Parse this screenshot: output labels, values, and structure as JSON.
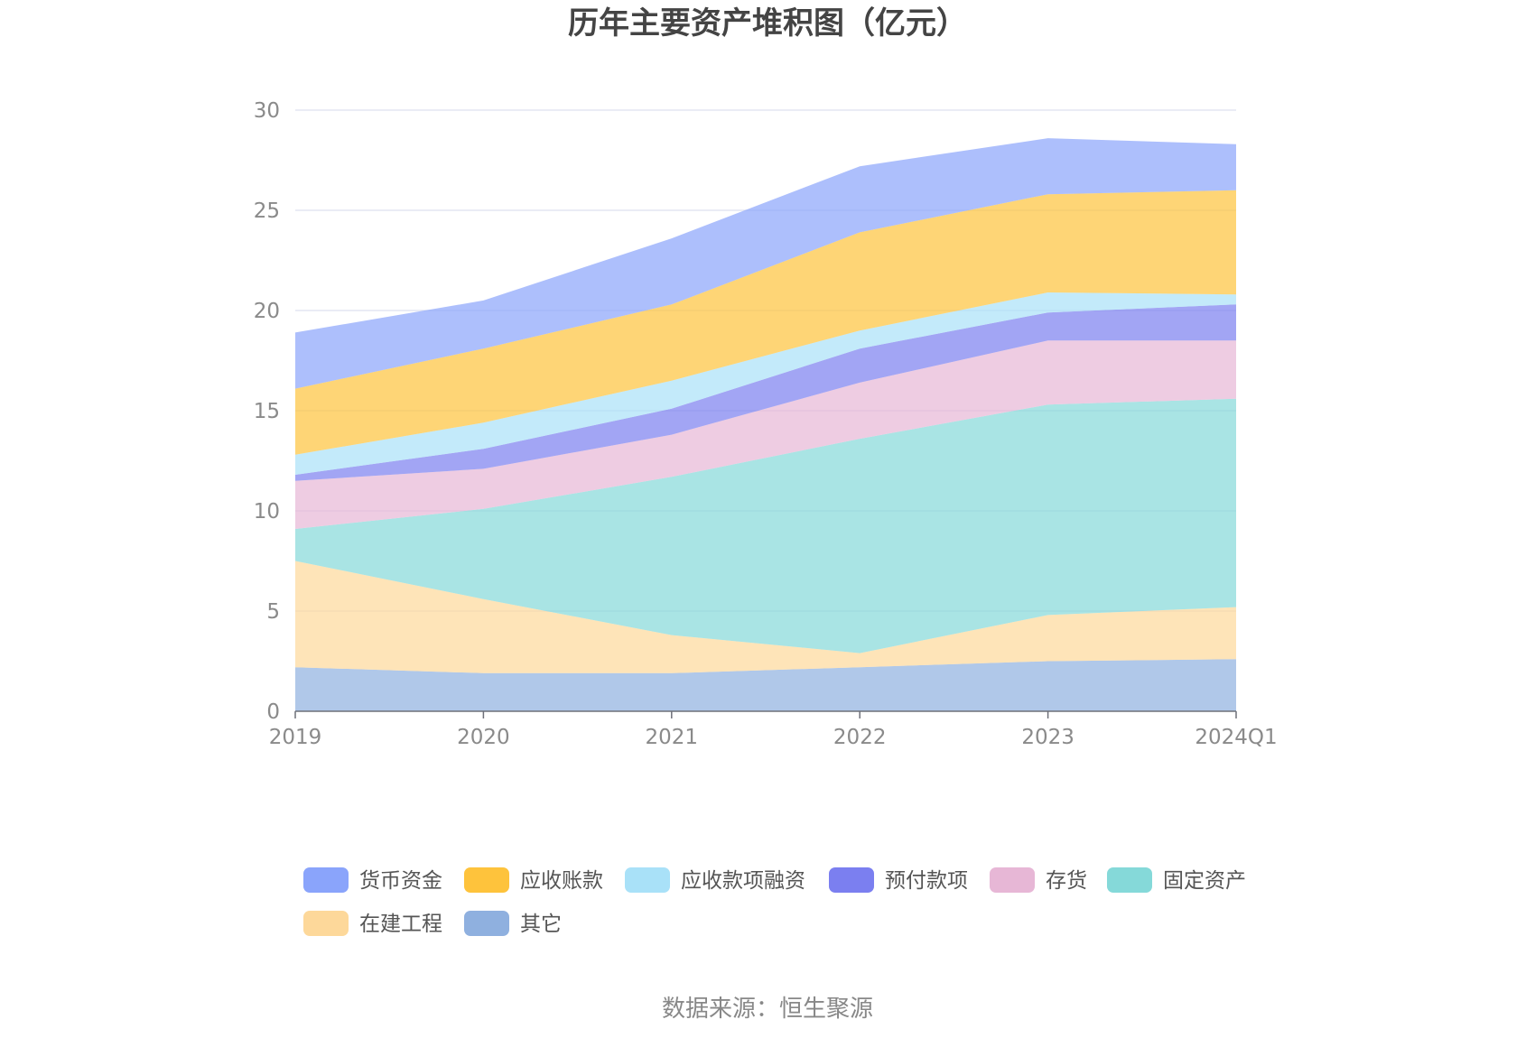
{
  "chart_data": {
    "type": "area",
    "stacked": true,
    "title": "历年主要资产堆积图（亿元）",
    "categories": [
      "2019",
      "2020",
      "2021",
      "2022",
      "2023",
      "2024Q1"
    ],
    "ylim": [
      0,
      30
    ],
    "yticks": [
      "0",
      "5",
      "10",
      "15",
      "20",
      "25",
      "30"
    ],
    "grid": true,
    "legend_position": "bottom",
    "series": [
      {
        "name": "其它",
        "color": "#8fb0df",
        "values": [
          2.2,
          1.9,
          1.9,
          2.2,
          2.5,
          2.6
        ]
      },
      {
        "name": "在建工程",
        "color": "#fdd89a",
        "values": [
          5.3,
          3.7,
          1.9,
          0.7,
          2.3,
          2.6
        ]
      },
      {
        "name": "固定资产",
        "color": "#85d9d9",
        "values": [
          1.6,
          4.5,
          7.9,
          10.7,
          10.5,
          10.4
        ]
      },
      {
        "name": "存货",
        "color": "#e7b7d6",
        "values": [
          2.4,
          2.0,
          2.1,
          2.8,
          3.2,
          2.9
        ]
      },
      {
        "name": "预付款项",
        "color": "#7b7ff0",
        "values": [
          0.3,
          1.0,
          1.3,
          1.7,
          1.4,
          1.8
        ]
      },
      {
        "name": "应收款项融资",
        "color": "#a9e1f8",
        "values": [
          1.0,
          1.3,
          1.4,
          0.9,
          1.0,
          0.5
        ]
      },
      {
        "name": "应收账款",
        "color": "#fec33c",
        "values": [
          3.3,
          3.7,
          3.8,
          4.9,
          4.9,
          5.2
        ]
      },
      {
        "name": "货币资金",
        "color": "#8aa4fb",
        "values": [
          2.8,
          2.4,
          3.3,
          3.3,
          2.8,
          2.3
        ]
      }
    ],
    "legend_order": [
      "货币资金",
      "应收账款",
      "应收款项融资",
      "预付款项",
      "存货",
      "固定资产",
      "在建工程",
      "其它"
    ]
  },
  "source": "数据来源：恒生聚源"
}
